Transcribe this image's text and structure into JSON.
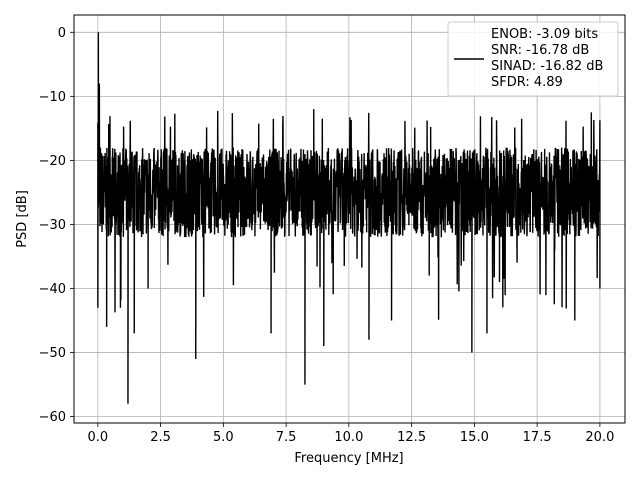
{
  "chart_data": {
    "type": "line",
    "xlabel": "Frequency [MHz]",
    "ylabel": "PSD [dB]",
    "xlim": [
      -0.95,
      21.0
    ],
    "ylim": [
      -61.0,
      2.7
    ],
    "x_ticks": [
      0.0,
      2.5,
      5.0,
      7.5,
      10.0,
      12.5,
      15.0,
      17.5,
      20.0
    ],
    "x_tick_labels": [
      "0.0",
      "2.5",
      "5.0",
      "7.5",
      "10.0",
      "12.5",
      "15.0",
      "17.5",
      "20.0"
    ],
    "y_ticks": [
      0,
      -10,
      -20,
      -30,
      -40,
      -50,
      -60
    ],
    "y_tick_labels": [
      "0",
      "−10",
      "−20",
      "−30",
      "−40",
      "−50",
      "−60"
    ],
    "grid": true,
    "legend_position": "top-right",
    "series": [
      {
        "color": "#000000",
        "frequency_range_mhz": [
          0.0,
          20.0
        ],
        "noise_floor_db": [
          -35,
          -15
        ],
        "values": [
          [
            0.0,
            -43
          ],
          [
            0.02,
            0
          ],
          [
            0.04,
            -14
          ],
          [
            0.06,
            -8
          ],
          [
            0.1,
            -18
          ],
          [
            0.22,
            -30
          ],
          [
            0.35,
            -46
          ],
          [
            0.5,
            -25
          ],
          [
            0.9,
            -43
          ],
          [
            1.2,
            -58
          ],
          [
            1.45,
            -47
          ],
          [
            2.0,
            -40
          ],
          [
            3.9,
            -51
          ],
          [
            4.6,
            -28
          ],
          [
            6.9,
            -47
          ],
          [
            8.25,
            -55
          ],
          [
            8.6,
            -12
          ],
          [
            9.0,
            -49
          ],
          [
            10.0,
            -28
          ],
          [
            10.8,
            -48
          ],
          [
            11.7,
            -45
          ],
          [
            12.6,
            -28
          ],
          [
            13.2,
            -38
          ],
          [
            14.9,
            -50
          ],
          [
            15.5,
            -47
          ],
          [
            16.0,
            -39
          ],
          [
            17.4,
            -28
          ],
          [
            18.2,
            -34
          ],
          [
            19.0,
            -45
          ],
          [
            20.0,
            -40
          ]
        ]
      }
    ],
    "legend": {
      "lines": [
        "ENOB: -3.09 bits",
        "SNR: -16.78 dB",
        "SINAD: -16.82 dB",
        "SFDR: 4.89"
      ]
    }
  }
}
